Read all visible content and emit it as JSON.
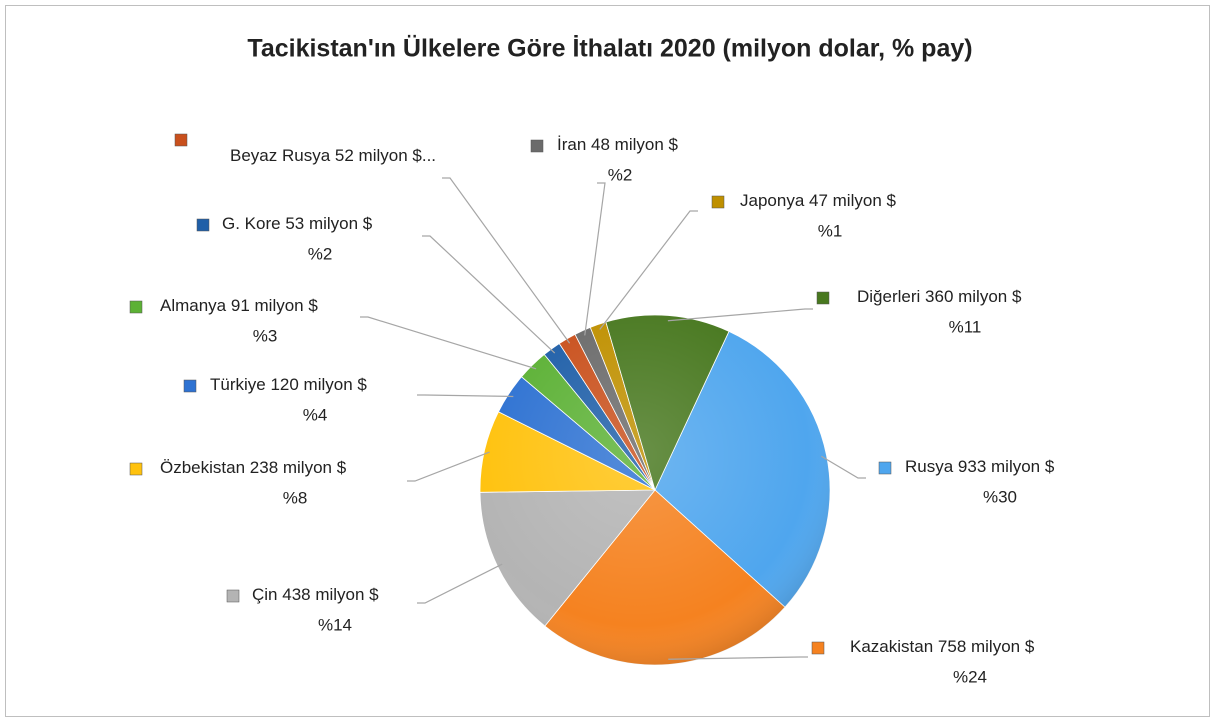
{
  "chart_data": {
    "type": "pie",
    "title": "Tacikistan'ın Ülkelere Göre İthalatı 2020 (milyon dolar, % pay)",
    "categories": [
      "Rusya",
      "Kazakistan",
      "Çin",
      "Özbekistan",
      "Türkiye",
      "Almanya",
      "G. Kore",
      "Beyaz Rusya",
      "İran",
      "Japonya",
      "Diğerleri"
    ],
    "values": [
      933,
      758,
      438,
      238,
      120,
      91,
      53,
      52,
      48,
      47,
      360
    ],
    "value_labels": [
      "933 milyon $",
      "758 milyon $",
      "438 milyon $",
      "238 milyon $",
      "120 milyon $",
      "91 milyon $",
      "53 milyon $",
      "52 milyon $...",
      "48 milyon $",
      "47 milyon $",
      "360 milyon $"
    ],
    "percents": [
      30,
      24,
      14,
      8,
      4,
      3,
      2,
      null,
      2,
      1,
      11
    ],
    "percent_labels": [
      "%30",
      "%24",
      "%14",
      "%8",
      "%4",
      "%3",
      "%2",
      null,
      "%2",
      "%1",
      "%11"
    ],
    "colors": [
      "#4fa6ee",
      "#f58220",
      "#b4b4b4",
      "#ffc20e",
      "#2e72d2",
      "#5cb135",
      "#1f5fa8",
      "#c9501c",
      "#6b6b6b",
      "#bf9000",
      "#48781f"
    ]
  }
}
